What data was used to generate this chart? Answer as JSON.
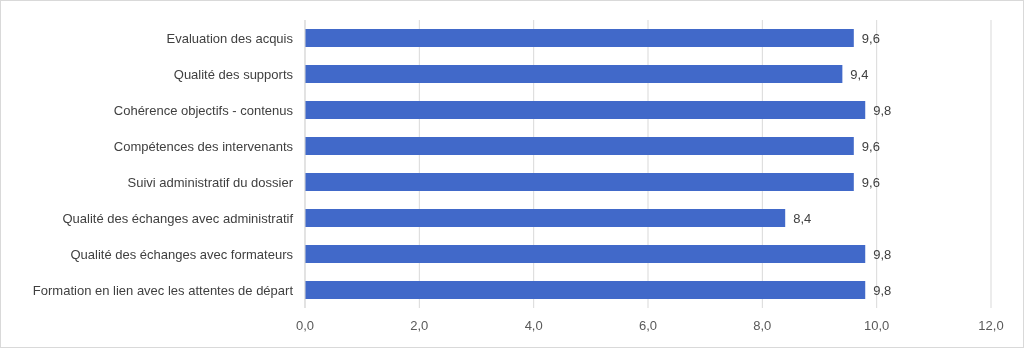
{
  "chart_data": {
    "type": "bar",
    "orientation": "horizontal",
    "categories": [
      "Evaluation des acquis",
      "Qualité des supports",
      "Cohérence objectifs - contenus",
      "Compétences des intervenants",
      "Suivi administratif du dossier",
      "Qualité des échanges avec administratif",
      "Qualité des échanges avec formateurs",
      "Formation en lien avec les attentes de départ"
    ],
    "values": [
      9.6,
      9.4,
      9.8,
      9.6,
      9.6,
      8.4,
      9.8,
      9.8
    ],
    "value_labels": [
      "9,6",
      "9,4",
      "9,8",
      "9,6",
      "9,6",
      "8,4",
      "9,8",
      "9,8"
    ],
    "color": "#4169c9",
    "xlim": [
      0,
      12
    ],
    "xticks": [
      {
        "value": 0,
        "label": "0,0"
      },
      {
        "value": 2,
        "label": "2,0"
      },
      {
        "value": 4,
        "label": "4,0"
      },
      {
        "value": 6,
        "label": "6,0"
      },
      {
        "value": 8,
        "label": "8,0"
      },
      {
        "value": 10,
        "label": "10,0"
      },
      {
        "value": 12,
        "label": "12,0"
      }
    ],
    "grid": "x"
  }
}
